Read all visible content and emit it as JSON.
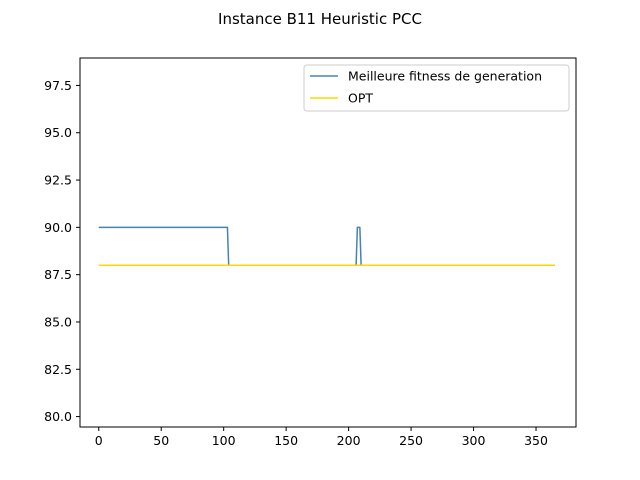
{
  "chart_data": {
    "type": "line",
    "title": "Instance B11 Heuristic PCC",
    "xlabel": "",
    "ylabel": "",
    "xlim": [
      -15,
      382
    ],
    "ylim": [
      79.45,
      98.95
    ],
    "x_ticks": [
      0,
      50,
      100,
      150,
      200,
      250,
      300,
      350
    ],
    "y_ticks": [
      80.0,
      82.5,
      85.0,
      87.5,
      90.0,
      92.5,
      95.0,
      97.5
    ],
    "x_tick_labels": [
      "0",
      "50",
      "100",
      "150",
      "200",
      "250",
      "300",
      "350"
    ],
    "y_tick_labels": [
      "80.0",
      "82.5",
      "85.0",
      "87.5",
      "90.0",
      "92.5",
      "95.0",
      "97.5"
    ],
    "grid": false,
    "legend_position": "upper right",
    "series": [
      {
        "name": "Meilleure fitness de generation",
        "color": "#4682b4",
        "points": [
          [
            0,
            90
          ],
          [
            103,
            90
          ],
          [
            104,
            88
          ],
          [
            206,
            88
          ],
          [
            207,
            90
          ],
          [
            209,
            90
          ],
          [
            210,
            88
          ],
          [
            365,
            88
          ]
        ]
      },
      {
        "name": "OPT",
        "color": "#ffd700",
        "points": [
          [
            0,
            88
          ],
          [
            365,
            88
          ]
        ]
      }
    ]
  }
}
